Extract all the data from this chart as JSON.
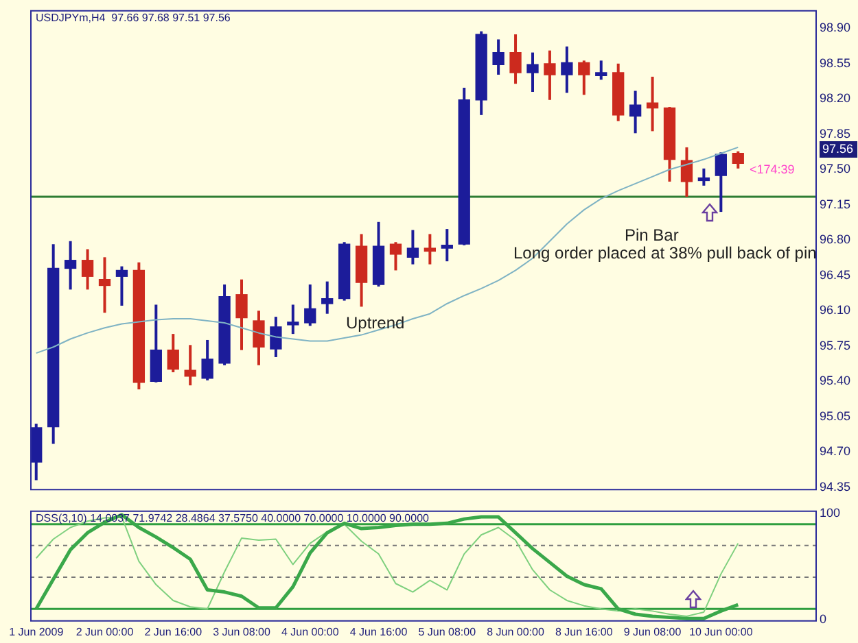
{
  "chart_data": [
    {
      "type": "candlestick",
      "title": "USDJPYm,H4  97.66 97.68 97.51 97.56",
      "categories": [
        null,
        null,
        null,
        null,
        null,
        null,
        null,
        null,
        null,
        null,
        null,
        null,
        null,
        null,
        null,
        null,
        null,
        null,
        null,
        null,
        null,
        null,
        null,
        null,
        null,
        null,
        null,
        null,
        null,
        null,
        null,
        null,
        null,
        null,
        null,
        null,
        null,
        null,
        null,
        null,
        null,
        null
      ],
      "ohlc": [
        [
          94.6,
          94.98,
          94.42,
          94.94
        ],
        [
          94.95,
          96.76,
          94.78,
          96.52
        ],
        [
          96.52,
          96.79,
          96.31,
          96.6
        ],
        [
          96.6,
          96.71,
          96.31,
          96.44
        ],
        [
          96.41,
          96.63,
          96.08,
          96.35
        ],
        [
          96.44,
          96.54,
          96.15,
          96.5
        ],
        [
          96.5,
          96.58,
          95.32,
          95.39
        ],
        [
          95.4,
          96.16,
          95.39,
          95.71
        ],
        [
          95.71,
          95.87,
          95.49,
          95.52
        ],
        [
          95.51,
          95.76,
          95.36,
          95.45
        ],
        [
          95.43,
          95.81,
          95.41,
          95.62
        ],
        [
          95.58,
          96.36,
          95.56,
          96.24
        ],
        [
          96.26,
          96.41,
          95.71,
          96.03
        ],
        [
          96.0,
          96.1,
          95.56,
          95.74
        ],
        [
          95.72,
          96.04,
          95.64,
          95.94
        ],
        [
          95.96,
          96.16,
          95.87,
          95.97
        ],
        [
          95.98,
          96.36,
          95.95,
          96.12
        ],
        [
          96.17,
          96.39,
          96.07,
          96.22
        ],
        [
          96.22,
          96.78,
          96.2,
          96.76
        ],
        [
          96.74,
          96.86,
          96.14,
          96.38
        ],
        [
          96.36,
          96.98,
          96.34,
          96.74
        ],
        [
          96.76,
          96.78,
          96.5,
          96.66
        ],
        [
          96.63,
          96.9,
          96.56,
          96.72
        ],
        [
          96.72,
          96.86,
          96.56,
          96.69
        ],
        [
          96.72,
          96.91,
          96.59,
          96.75
        ],
        [
          96.76,
          98.31,
          96.75,
          98.19
        ],
        [
          98.19,
          98.87,
          98.04,
          98.84
        ],
        [
          98.54,
          98.79,
          98.44,
          98.66
        ],
        [
          98.66,
          98.84,
          98.35,
          98.46
        ],
        [
          98.46,
          98.66,
          98.27,
          98.54
        ],
        [
          98.55,
          98.68,
          98.19,
          98.44
        ],
        [
          98.44,
          98.72,
          98.26,
          98.56
        ],
        [
          98.56,
          98.58,
          98.24,
          98.44
        ],
        [
          98.43,
          98.58,
          98.39,
          98.46
        ],
        [
          98.46,
          98.55,
          97.98,
          98.04
        ],
        [
          98.03,
          98.28,
          97.86,
          98.14
        ],
        [
          98.16,
          98.42,
          97.88,
          98.11
        ],
        [
          98.11,
          98.12,
          97.38,
          97.6
        ],
        [
          97.59,
          97.72,
          97.23,
          97.38
        ],
        [
          97.39,
          97.51,
          97.34,
          97.41
        ],
        [
          97.44,
          97.67,
          97.08,
          97.65
        ],
        [
          97.66,
          97.68,
          97.51,
          97.56
        ]
      ],
      "colors": [
        "#1c1c9a",
        "#1c1c9a",
        "#1c1c9a",
        "#cc2a1e",
        "#cc2a1e",
        "#1c1c9a",
        "#cc2a1e",
        "#1c1c9a",
        "#cc2a1e",
        "#cc2a1e",
        "#1c1c9a",
        "#1c1c9a",
        "#cc2a1e",
        "#cc2a1e",
        "#1c1c9a",
        "#1c1c9a",
        "#1c1c9a",
        "#1c1c9a",
        "#1c1c9a",
        "#cc2a1e",
        "#1c1c9a",
        "#cc2a1e",
        "#1c1c9a",
        "#cc2a1e",
        "#1c1c9a",
        "#1c1c9a",
        "#1c1c9a",
        "#1c1c9a",
        "#cc2a1e",
        "#1c1c9a",
        "#cc2a1e",
        "#1c1c9a",
        "#cc2a1e",
        "#1c1c9a",
        "#cc2a1e",
        "#1c1c9a",
        "#cc2a1e",
        "#cc2a1e",
        "#cc2a1e",
        "#1c1c9a",
        "#1c1c9a",
        "#cc2a1e"
      ],
      "series": [
        {
          "type": "line",
          "color": "#7fb3c4",
          "values": [
            95.68,
            95.74,
            95.82,
            95.88,
            95.93,
            95.97,
            95.99,
            96.01,
            96.02,
            96.02,
            96.0,
            95.98,
            95.93,
            95.88,
            95.84,
            95.82,
            95.8,
            95.8,
            95.83,
            95.86,
            95.91,
            95.96,
            96.02,
            96.07,
            96.17,
            96.25,
            96.32,
            96.4,
            96.5,
            96.62,
            96.79,
            96.96,
            97.1,
            97.21,
            97.29,
            97.36,
            97.43,
            97.5,
            97.55,
            97.6,
            97.66,
            97.72
          ]
        }
      ],
      "ylim": [
        94.32,
        99.08
      ],
      "yticks": [
        94.35,
        {
          "value": 94.7,
          "label": "94.70"
        },
        95.05,
        {
          "value": 95.4,
          "label": "95.40"
        },
        95.75,
        {
          "value": 96.1,
          "label": "96.10"
        },
        96.45,
        {
          "value": 96.8,
          "label": "96.80"
        },
        97.15,
        {
          "value": 97.5,
          "label": "97.50"
        },
        97.85,
        {
          "value": 98.2,
          "label": "98.20"
        },
        98.55,
        {
          "value": 98.9,
          "label": "98.90"
        }
      ],
      "tick_labels": "y",
      "ref_lines": [
        {
          "axis": "y",
          "value": 97.23,
          "color": "#2e7d32"
        }
      ],
      "annotations": [
        "Uptrend",
        "Pin Bar",
        "Long order placed at 38% pull back of pin",
        "<174:39",
        "97.56"
      ]
    },
    {
      "type": "line",
      "title": "DSS(3,10) 14.0037 71.9742 28.4864 37.5750 40.0000 70.0000 10.0000 90.0000",
      "categories": [
        "1 Jun 2009",
        null,
        null,
        null,
        "2 Jun 00:00",
        null,
        null,
        null,
        "2 Jun 16:00",
        null,
        null,
        null,
        "3 Jun 08:00",
        null,
        null,
        null,
        "4 Jun 00:00",
        null,
        null,
        null,
        "4 Jun 16:00",
        null,
        null,
        null,
        "5 Jun 08:00",
        null,
        null,
        null,
        "8 Jun 00:00",
        null,
        null,
        null,
        "8 Jun 16:00",
        null,
        null,
        null,
        "9 Jun 08:00",
        null,
        null,
        null,
        "10 Jun 00:00",
        null
      ],
      "series": [
        {
          "color": "#3aa84a",
          "values": [
            10,
            38,
            66,
            82,
            92,
            99,
            87,
            78,
            68,
            57,
            28,
            26,
            22,
            11,
            11,
            31,
            63,
            82,
            91,
            86,
            87,
            89,
            90,
            90,
            91,
            95,
            97,
            97,
            82,
            67,
            54,
            41,
            33,
            29,
            10,
            5,
            3,
            2,
            1,
            1,
            8,
            14
          ]
        },
        {
          "color": "#7fd07f",
          "values": [
            58,
            76,
            87,
            93,
            96,
            97,
            55,
            33,
            18,
            12,
            10,
            45,
            77,
            75,
            76,
            52,
            72,
            83,
            90,
            74,
            62,
            34,
            26,
            37,
            28,
            62,
            80,
            87,
            75,
            47,
            28,
            18,
            13,
            10,
            8,
            10,
            8,
            5,
            3,
            7,
            43,
            72
          ]
        }
      ],
      "ylim": [
        -2,
        103
      ],
      "yticks": [
        0,
        100
      ],
      "ref_lines": [
        {
          "axis": "y",
          "value": 90,
          "color": "#2e9e3e",
          "line_style": "solid"
        },
        {
          "axis": "y",
          "value": 70,
          "color": "#777777",
          "line_style": "dashed"
        },
        {
          "axis": "y",
          "value": 40,
          "color": "#777777",
          "line_style": "dashed"
        },
        {
          "axis": "y",
          "value": 10,
          "color": "#2e9e3e",
          "line_style": "solid"
        }
      ]
    }
  ]
}
